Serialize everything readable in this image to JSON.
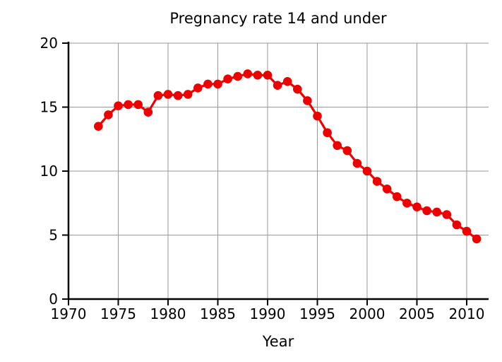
{
  "page": {
    "background_color": "#ffffff"
  },
  "chart_data": {
    "type": "line",
    "title": "Pregnancy rate 14 and under",
    "xlabel": "Year",
    "ylabel": "",
    "legend": null,
    "grid": true,
    "xlim": [
      1970,
      2012.2
    ],
    "ylim": [
      0,
      20
    ],
    "xticks": [
      1970,
      1975,
      1980,
      1985,
      1990,
      1995,
      2000,
      2005,
      2010
    ],
    "yticks": [
      0,
      5,
      10,
      15,
      20
    ],
    "x": [
      1973,
      1974,
      1975,
      1976,
      1977,
      1978,
      1979,
      1980,
      1981,
      1982,
      1983,
      1984,
      1985,
      1986,
      1987,
      1988,
      1989,
      1990,
      1991,
      1992,
      1993,
      1994,
      1995,
      1996,
      1997,
      1998,
      1999,
      2000,
      2001,
      2002,
      2003,
      2004,
      2005,
      2006,
      2007,
      2008,
      2009,
      2010,
      2011
    ],
    "values": [
      13.5,
      14.4,
      15.1,
      15.2,
      15.2,
      14.6,
      15.9,
      16.0,
      15.9,
      16.0,
      16.5,
      16.8,
      16.8,
      17.2,
      17.4,
      17.6,
      17.5,
      17.5,
      16.7,
      17.0,
      16.4,
      15.5,
      14.3,
      13.0,
      12.0,
      11.6,
      10.6,
      10.0,
      9.2,
      8.6,
      8.0,
      7.5,
      7.2,
      6.9,
      6.8,
      6.6,
      5.8,
      5.3,
      4.7
    ],
    "line_color": "#ee0000",
    "marker": "circle",
    "marker_size": 6.3,
    "line_width": 3.2,
    "grid_color": "#999999",
    "axis_color": "#000000",
    "legend_position": "none"
  }
}
